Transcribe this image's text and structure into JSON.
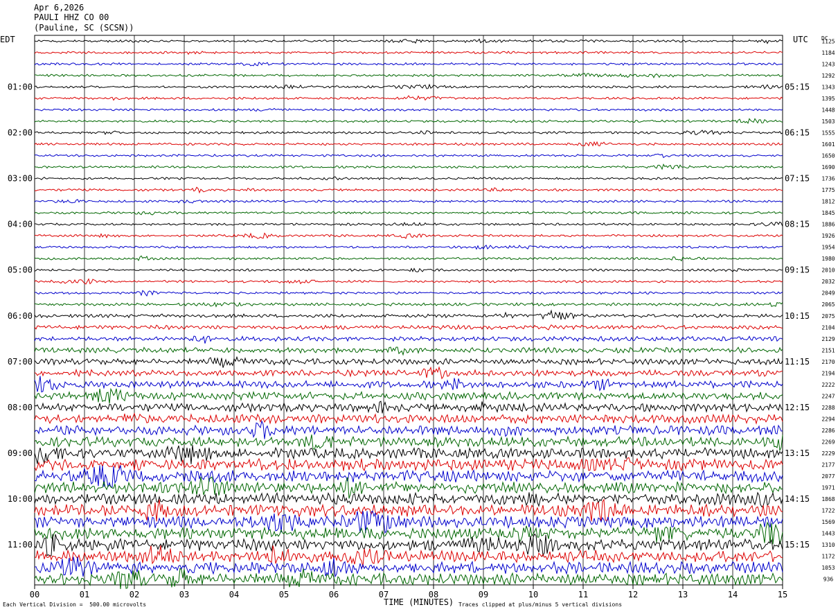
{
  "header": {
    "date": "Apr 6,2026",
    "station": "PAULI HHZ CO 00",
    "location": "(Pauline, SC (SCSN))"
  },
  "left_zone_label": "EDT",
  "right_zone_label": "UTC",
  "dc_label": "DC",
  "footer": {
    "division_note": "Each Vertical Division =  500.00 microvolts",
    "clip_note": "Traces clipped at plus/minus 5 vertical divisions"
  },
  "colors": {
    "trace_cycle": [
      "#000000",
      "#dd0000",
      "#0000cc",
      "#006600"
    ],
    "grid": "#000000"
  },
  "chart_data": {
    "type": "line",
    "title": "",
    "xlabel": "TIME (MINUTES)",
    "xlim": [
      0,
      15
    ],
    "x_ticks": [
      "00",
      "01",
      "02",
      "03",
      "04",
      "05",
      "06",
      "07",
      "08",
      "09",
      "10",
      "11",
      "12",
      "13",
      "14",
      "15"
    ],
    "left_time_labels": [
      "01:00",
      "02:00",
      "03:00",
      "04:00",
      "05:00",
      "06:00",
      "07:00",
      "08:00",
      "09:00",
      "10:00",
      "11:00"
    ],
    "right_time_labels": [
      "05:15",
      "06:15",
      "07:15",
      "08:15",
      "09:15",
      "10:15",
      "11:15",
      "12:15",
      "13:15",
      "14:15",
      "15:15"
    ],
    "hour_label_rows": [
      4,
      8,
      12,
      16,
      20,
      24,
      28,
      32,
      36,
      40,
      44
    ],
    "trace_count": 48,
    "minutes_per_trace": 15,
    "dc_offsets": [
      "1125",
      "1184",
      "1243",
      "1292",
      "1343",
      "1395",
      "1448",
      "1503",
      "1555",
      "1601",
      "1650",
      "1690",
      "1736",
      "1775",
      "1812",
      "1845",
      "1886",
      "1926",
      "1954",
      "1980",
      "2010",
      "2032",
      "2049",
      "2065",
      "2075",
      "2104",
      "2129",
      "2151",
      "2170",
      "2194",
      "2222",
      "2247",
      "2288",
      "2294",
      "2286",
      "2269",
      "2229",
      "2177",
      "2077",
      "1971",
      "1868",
      "1722",
      "1569",
      "1443",
      "1310",
      "1172",
      "1053",
      "936"
    ]
  }
}
